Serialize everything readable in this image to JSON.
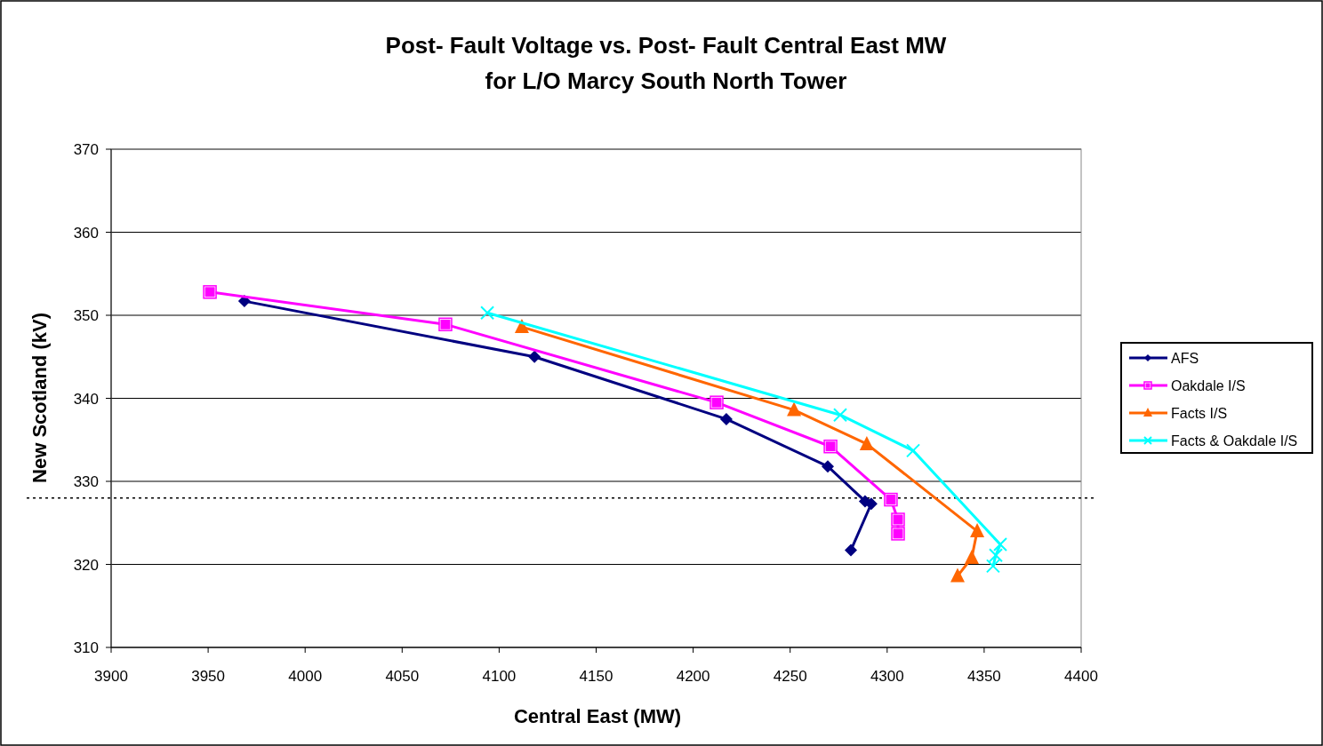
{
  "chart_data": {
    "type": "line",
    "title": "Post- Fault Voltage vs. Post- Fault Central East MW\nfor L/O Marcy South North Tower",
    "xlabel": "Central East (MW)",
    "ylabel": "New Scotland (kV)",
    "xlim": [
      3900,
      4400
    ],
    "xticks": [
      3900,
      3950,
      4000,
      4050,
      4100,
      4150,
      4200,
      4250,
      4300,
      4350,
      4400
    ],
    "ylim": [
      310,
      370
    ],
    "yticks": [
      310,
      320,
      330,
      340,
      350,
      360,
      370
    ],
    "grid": "y",
    "legend": "right",
    "line_style": "solid",
    "ref_lines": [
      {
        "axis": "y",
        "value": 328,
        "line_style": "dotted",
        "color": "#000000"
      }
    ],
    "series": [
      {
        "name": "AFS",
        "color": "#000080",
        "marker": "diamond",
        "x": [
          3968.7,
          4118.2,
          4217.1,
          4269.4,
          4288.6,
          4291.8,
          4281.3
        ],
        "values": [
          351.7,
          345.0,
          337.5,
          331.8,
          327.6,
          327.3,
          321.7
        ]
      },
      {
        "name": "Oakdale I/S",
        "color": "#ff00ff",
        "marker": "square",
        "x": [
          3950.9,
          4072.3,
          4212.1,
          4270.8,
          4301.9,
          4305.6,
          4305.6
        ],
        "values": [
          352.8,
          348.9,
          339.5,
          334.2,
          327.8,
          325.4,
          323.7
        ]
      },
      {
        "name": "Facts I/S",
        "color": "#ff6600",
        "marker": "triangle",
        "x": [
          4111.7,
          4252,
          4289.5,
          4346.4,
          4343.6,
          4336.3
        ],
        "values": [
          348.6,
          338.6,
          334.5,
          324.0,
          320.8,
          318.6
        ]
      },
      {
        "name": "Facts & Oakdale I/S",
        "color": "#00ffff",
        "marker": "cross",
        "x": [
          4093.9,
          4275.8,
          4313.4,
          4358.3,
          4356,
          4354.6
        ],
        "values": [
          350.3,
          338.0,
          333.7,
          322.4,
          321.1,
          319.8
        ]
      }
    ]
  }
}
